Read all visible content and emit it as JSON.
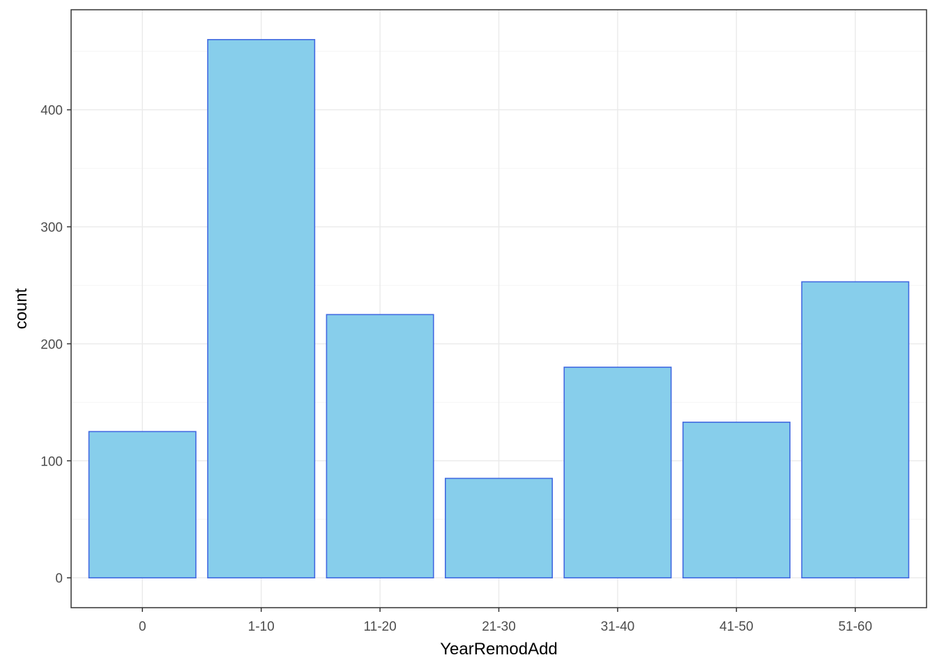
{
  "chart_data": {
    "type": "bar",
    "title": "",
    "xlabel": "YearRemodAdd",
    "ylabel": "count",
    "categories": [
      "0",
      "1-10",
      "11-20",
      "21-30",
      "31-40",
      "41-50",
      "51-60"
    ],
    "values": [
      125,
      460,
      225,
      85,
      180,
      133,
      253
    ],
    "ylim": [
      -25.5,
      485.5
    ],
    "yticks": [
      0,
      100,
      200,
      300,
      400
    ],
    "grid": true,
    "legend": "none",
    "colors": {
      "bar_fill": "#87CEEB",
      "bar_stroke": "#4169E1",
      "panel_background": "#ffffff",
      "grid_major": "#ebebeb",
      "grid_minor": "#f5f5f5",
      "panel_border": "#333333",
      "tick_text": "#4d4d4d",
      "title_text": "#000000"
    }
  }
}
